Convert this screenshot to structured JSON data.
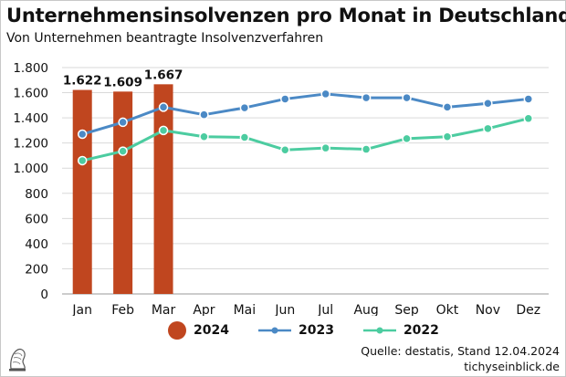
{
  "title": "Unternehmensinsolvenzen pro Monat in Deutschland",
  "subtitle": "Von Unternehmen beantragte Insolvenzverfahren",
  "source": "Quelle: destatis, Stand 12.04.2024",
  "site": "tichyseinblick.de",
  "colors": {
    "bar_2024": "#c0461f",
    "line_2023": "#4b89c5",
    "line_2022": "#4ccca0",
    "grid": "#d9d9d9"
  },
  "logo_icon": "tichys-einblick-logo-icon",
  "chart_data": {
    "type": "bar",
    "categories": [
      "Jan",
      "Feb",
      "Mar",
      "Apr",
      "Mai",
      "Jun",
      "Jul",
      "Aug",
      "Sep",
      "Okt",
      "Nov",
      "Dez"
    ],
    "ylim": [
      0,
      1800
    ],
    "yticks": [
      0,
      200,
      400,
      600,
      800,
      1000,
      1200,
      1400,
      1600,
      1800
    ],
    "ytick_labels": [
      "0",
      "200",
      "400",
      "600",
      "800",
      "1.000",
      "1.200",
      "1.400",
      "1.600",
      "1.800"
    ],
    "grid": true,
    "legend_position": "bottom",
    "series": [
      {
        "name": "2024",
        "kind": "bar",
        "values": [
          1622,
          1609,
          1667,
          null,
          null,
          null,
          null,
          null,
          null,
          null,
          null,
          null
        ],
        "data_labels": [
          "1.622",
          "1.609",
          "1.667"
        ]
      },
      {
        "name": "2023",
        "kind": "line",
        "values": [
          1270,
          1365,
          1485,
          1425,
          1480,
          1550,
          1590,
          1560,
          1560,
          1485,
          1515,
          1550
        ]
      },
      {
        "name": "2022",
        "kind": "line",
        "values": [
          1060,
          1135,
          1300,
          1250,
          1245,
          1145,
          1160,
          1150,
          1235,
          1250,
          1315,
          1395
        ]
      }
    ]
  }
}
